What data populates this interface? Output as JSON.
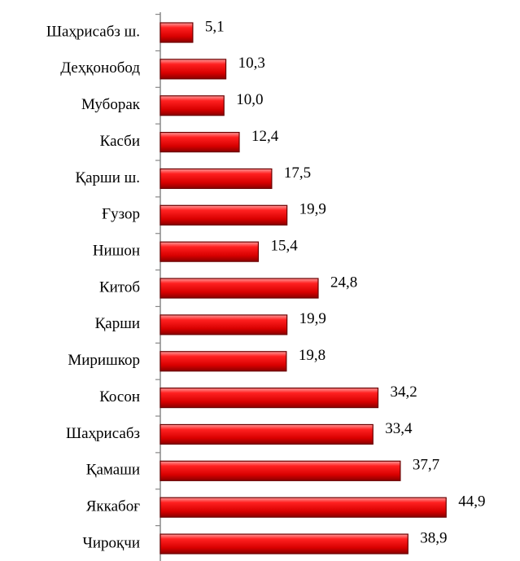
{
  "chart_data": {
    "type": "bar",
    "orientation": "horizontal",
    "categories": [
      "Шаҳрисабз ш.",
      "Деҳқонобод",
      "Муборак",
      "Касби",
      "Қарши ш.",
      "Ғузор",
      "Нишон",
      "Китоб",
      "Қарши",
      "Миришкор",
      "Косон",
      "Шаҳрисабз",
      "Қамаши",
      "Яккабоғ",
      "Чироқчи"
    ],
    "values": [
      5.1,
      10.3,
      10.0,
      12.4,
      17.5,
      19.9,
      15.4,
      24.8,
      19.9,
      19.8,
      34.2,
      33.4,
      37.7,
      44.9,
      38.9
    ],
    "value_labels": [
      "5,1",
      "10,3",
      "10,0",
      "12,4",
      "17,5",
      "19,9",
      "15,4",
      "24,8",
      "19,9",
      "19,8",
      "34,2",
      "33,4",
      "37,7",
      "44,9",
      "38,9"
    ],
    "color": "#e00000",
    "xlim": [
      0,
      45
    ]
  }
}
